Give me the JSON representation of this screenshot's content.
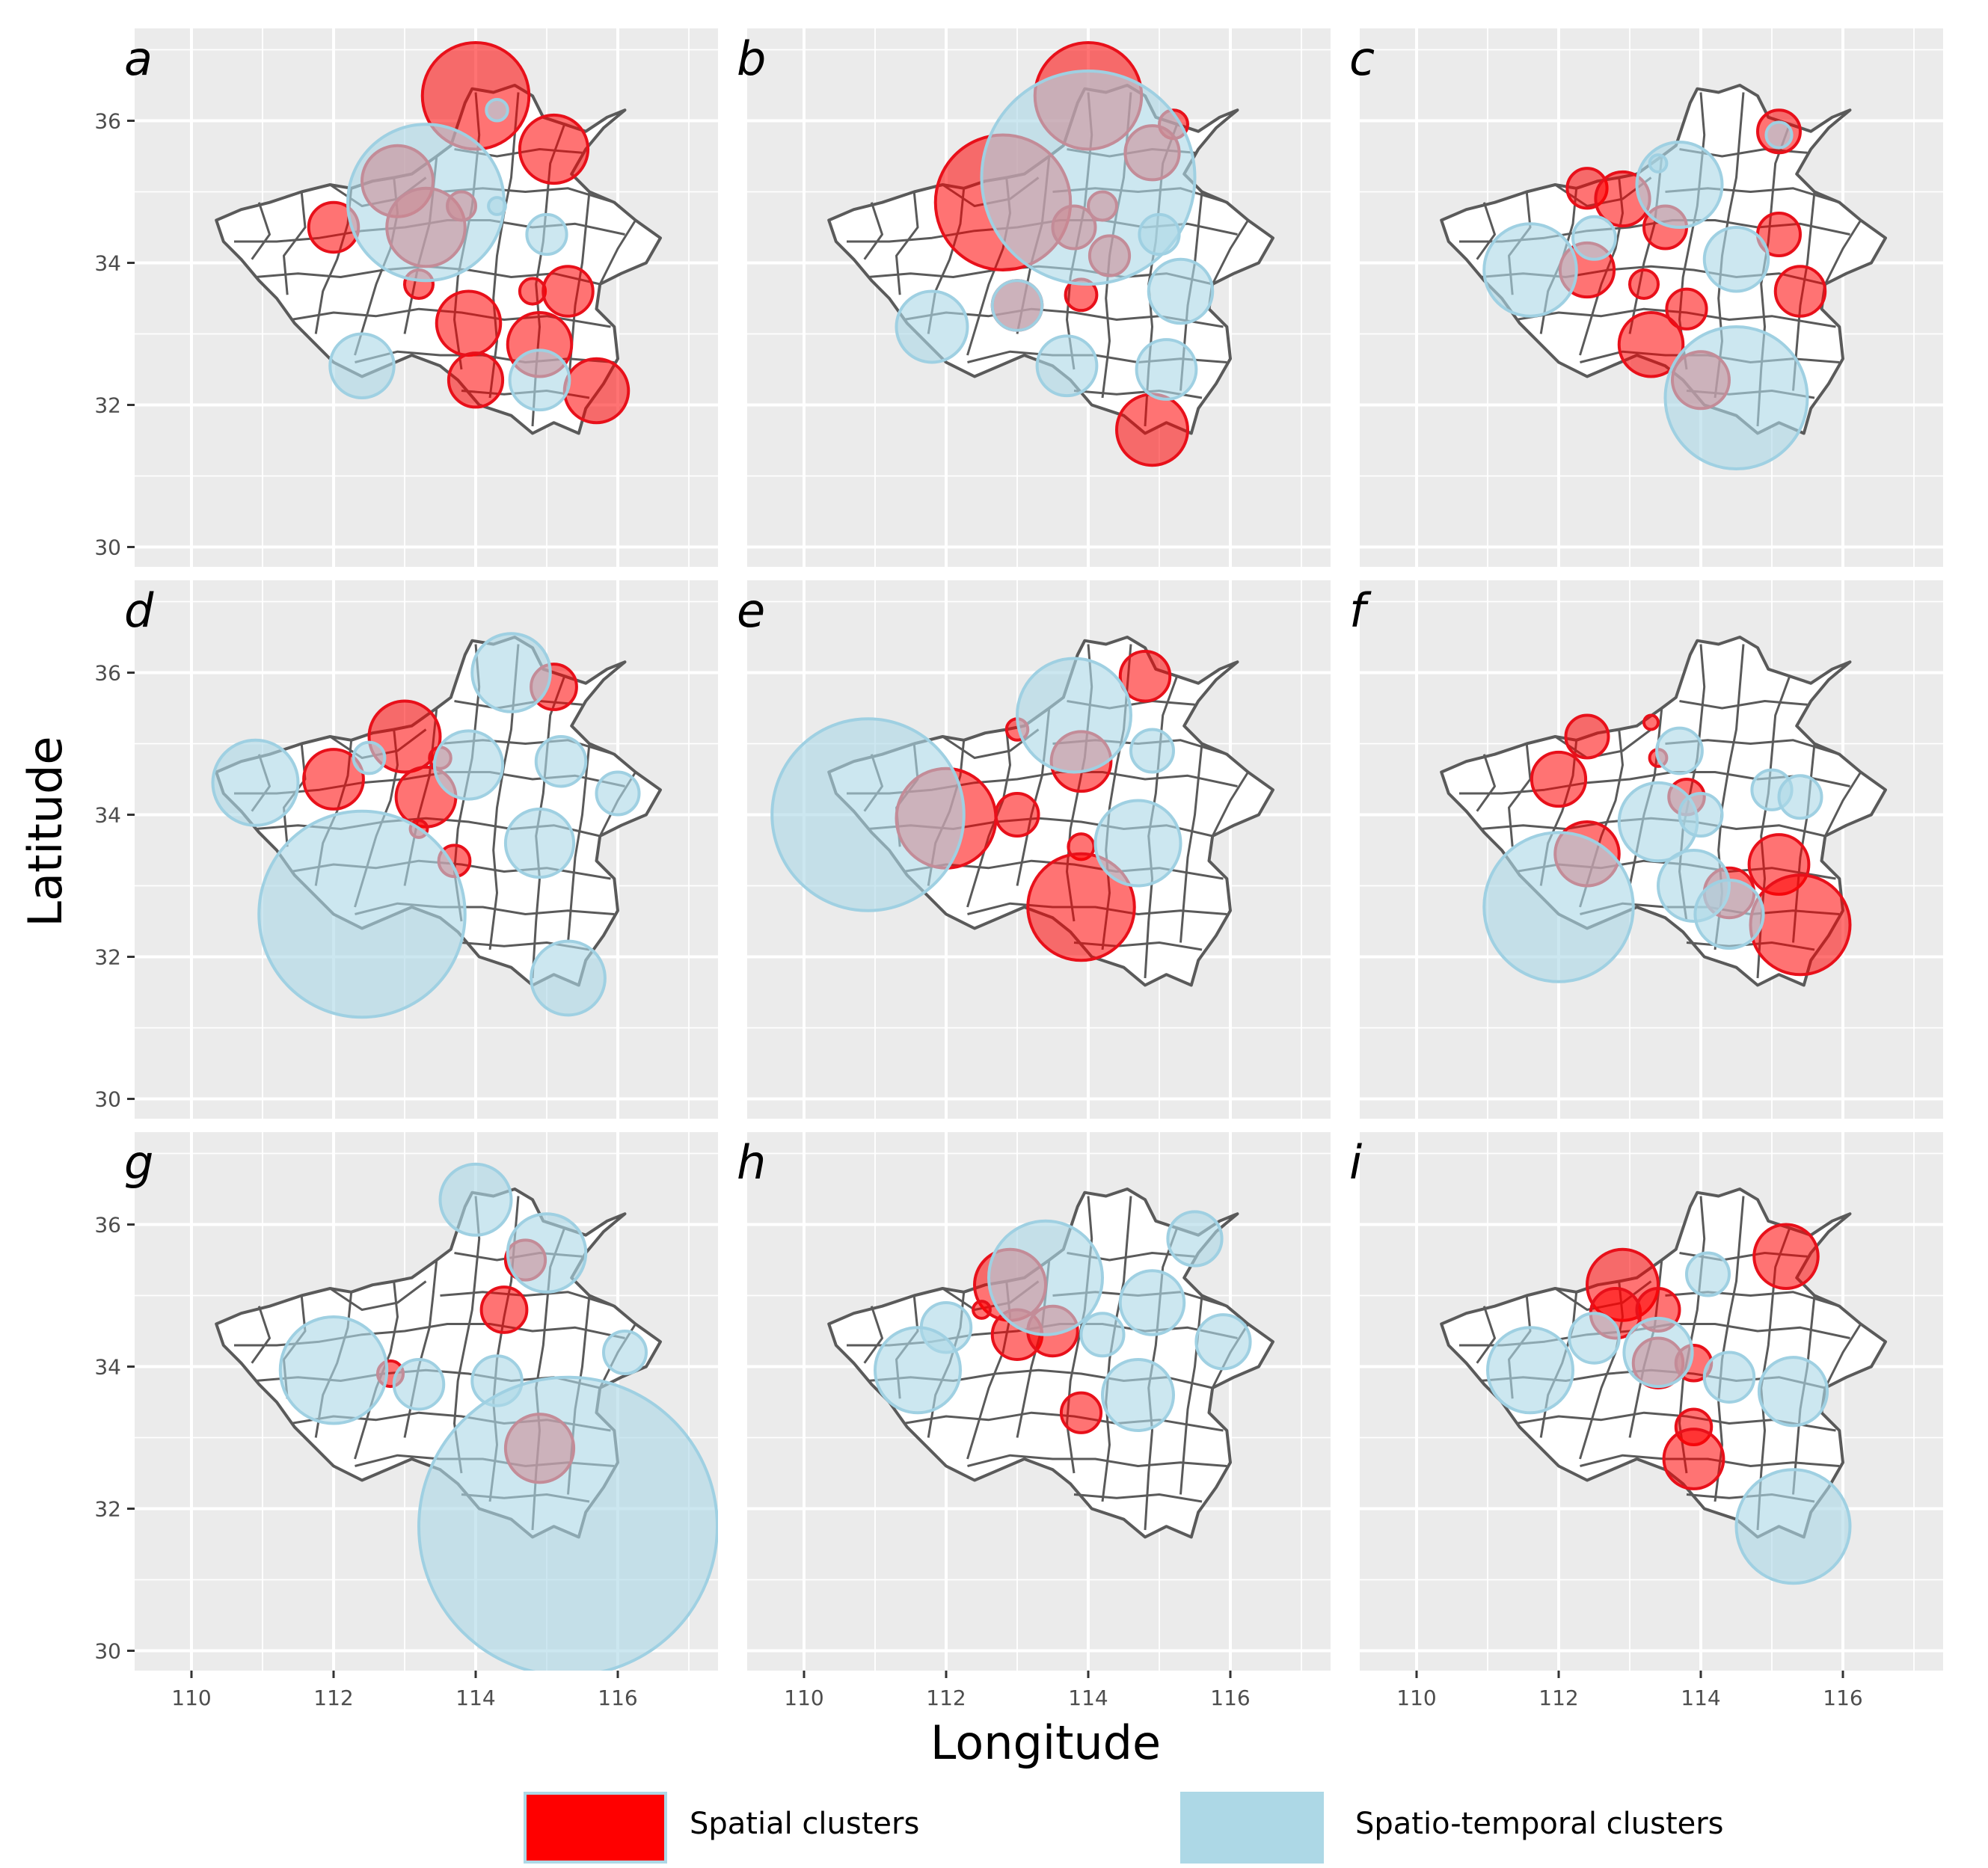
{
  "chart_data": {
    "type": "map",
    "xlabel": "Longitude",
    "ylabel": "Latitude",
    "xlim": [
      109.2,
      117.4
    ],
    "ylim": [
      29.6,
      37.3
    ],
    "x_ticks": [
      110,
      112,
      114,
      116
    ],
    "y_ticks": [
      30,
      32,
      34,
      36
    ],
    "x_tick_labels": [
      "110",
      "112",
      "114",
      "116"
    ],
    "y_tick_labels": [
      "30",
      "32",
      "34",
      "36"
    ],
    "grid": true,
    "legend": {
      "placement": "bottom",
      "entries": [
        {
          "label": "Spatial clusters",
          "color": "#ff0000"
        },
        {
          "label": "Spatio-temporal clusters",
          "color": "#add8e6"
        }
      ]
    },
    "colors": {
      "spatial_fill": "#ff0000",
      "spatial_stroke": "#e8101a",
      "st_fill": "#add8e6",
      "st_stroke": "#9fd0e2",
      "panel_bg": "#ebebeb",
      "grid": "#ffffff",
      "region_fill": "#ffffff",
      "region_stroke": "#5a5a5a"
    },
    "panels": [
      {
        "letter": "a",
        "spatial": [
          [
            114.0,
            36.35,
            0.75
          ],
          [
            115.1,
            35.6,
            0.48
          ],
          [
            112.9,
            35.15,
            0.5
          ],
          [
            113.3,
            34.5,
            0.55
          ],
          [
            112.0,
            34.5,
            0.35
          ],
          [
            113.8,
            34.8,
            0.2
          ],
          [
            113.2,
            33.7,
            0.2
          ],
          [
            114.8,
            33.6,
            0.18
          ],
          [
            115.3,
            33.6,
            0.35
          ],
          [
            113.9,
            33.15,
            0.45
          ],
          [
            114.9,
            32.85,
            0.45
          ],
          [
            114.0,
            32.35,
            0.38
          ],
          [
            115.7,
            32.2,
            0.45
          ]
        ],
        "st": [
          [
            113.3,
            34.85,
            1.1
          ],
          [
            114.3,
            36.15,
            0.15
          ],
          [
            115.0,
            34.4,
            0.28
          ],
          [
            112.4,
            32.55,
            0.45
          ],
          [
            114.9,
            32.35,
            0.42
          ],
          [
            114.3,
            34.8,
            0.12
          ]
        ]
      },
      {
        "letter": "b",
        "spatial": [
          [
            114.0,
            36.35,
            0.75
          ],
          [
            115.2,
            35.95,
            0.2
          ],
          [
            114.9,
            35.55,
            0.38
          ],
          [
            112.8,
            34.85,
            0.95
          ],
          [
            113.8,
            34.5,
            0.3
          ],
          [
            114.2,
            34.8,
            0.2
          ],
          [
            114.3,
            34.1,
            0.28
          ],
          [
            113.9,
            33.55,
            0.22
          ],
          [
            113.0,
            33.4,
            0.35
          ],
          [
            114.9,
            31.65,
            0.5
          ]
        ],
        "st": [
          [
            114.0,
            35.2,
            1.5
          ],
          [
            115.0,
            34.4,
            0.28
          ],
          [
            111.8,
            33.1,
            0.5
          ],
          [
            113.0,
            33.4,
            0.35
          ],
          [
            115.3,
            33.6,
            0.45
          ],
          [
            113.7,
            32.55,
            0.42
          ],
          [
            115.1,
            32.5,
            0.42
          ]
        ]
      },
      {
        "letter": "c",
        "spatial": [
          [
            115.1,
            35.85,
            0.3
          ],
          [
            112.4,
            35.05,
            0.28
          ],
          [
            112.9,
            34.9,
            0.38
          ],
          [
            113.5,
            34.5,
            0.3
          ],
          [
            115.1,
            34.4,
            0.3
          ],
          [
            112.4,
            33.9,
            0.38
          ],
          [
            113.2,
            33.7,
            0.2
          ],
          [
            113.8,
            33.35,
            0.28
          ],
          [
            115.4,
            33.6,
            0.35
          ],
          [
            113.3,
            32.85,
            0.45
          ],
          [
            114.0,
            32.35,
            0.4
          ]
        ],
        "st": [
          [
            113.7,
            35.1,
            0.6
          ],
          [
            115.1,
            35.8,
            0.18
          ],
          [
            112.5,
            34.35,
            0.3
          ],
          [
            111.6,
            33.9,
            0.65
          ],
          [
            114.5,
            34.05,
            0.45
          ],
          [
            114.5,
            32.1,
            1.0
          ],
          [
            113.4,
            35.4,
            0.12
          ]
        ]
      },
      {
        "letter": "d",
        "spatial": [
          [
            113.0,
            35.1,
            0.5
          ],
          [
            115.1,
            35.8,
            0.32
          ],
          [
            112.0,
            34.5,
            0.42
          ],
          [
            113.3,
            34.25,
            0.42
          ],
          [
            113.2,
            33.8,
            0.12
          ],
          [
            113.7,
            33.35,
            0.22
          ],
          [
            113.5,
            34.8,
            0.15
          ]
        ],
        "st": [
          [
            110.9,
            34.45,
            0.6
          ],
          [
            112.5,
            34.8,
            0.22
          ],
          [
            113.9,
            34.7,
            0.48
          ],
          [
            114.5,
            36.0,
            0.55
          ],
          [
            115.2,
            34.75,
            0.35
          ],
          [
            116.0,
            34.3,
            0.3
          ],
          [
            114.9,
            33.6,
            0.48
          ],
          [
            112.4,
            32.6,
            1.45
          ],
          [
            115.3,
            31.7,
            0.52
          ]
        ]
      },
      {
        "letter": "e",
        "spatial": [
          [
            114.8,
            35.95,
            0.35
          ],
          [
            113.9,
            34.75,
            0.42
          ],
          [
            113.0,
            35.2,
            0.15
          ],
          [
            112.0,
            33.95,
            0.7
          ],
          [
            113.0,
            34.0,
            0.3
          ],
          [
            113.9,
            33.55,
            0.18
          ],
          [
            113.9,
            32.7,
            0.75
          ]
        ],
        "st": [
          [
            113.8,
            35.4,
            0.8
          ],
          [
            114.9,
            34.9,
            0.3
          ],
          [
            110.9,
            34.0,
            1.35
          ],
          [
            114.7,
            33.6,
            0.6
          ]
        ]
      },
      {
        "letter": "f",
        "spatial": [
          [
            112.4,
            35.1,
            0.3
          ],
          [
            113.3,
            35.3,
            0.1
          ],
          [
            112.0,
            34.5,
            0.38
          ],
          [
            113.8,
            34.25,
            0.25
          ],
          [
            112.4,
            33.45,
            0.45
          ],
          [
            115.1,
            33.3,
            0.42
          ],
          [
            114.4,
            32.9,
            0.35
          ],
          [
            115.4,
            32.45,
            0.7
          ],
          [
            113.4,
            34.8,
            0.12
          ]
        ],
        "st": [
          [
            113.7,
            34.9,
            0.32
          ],
          [
            113.4,
            33.9,
            0.55
          ],
          [
            114.0,
            34.0,
            0.3
          ],
          [
            115.0,
            34.35,
            0.28
          ],
          [
            115.4,
            34.25,
            0.3
          ],
          [
            113.9,
            33.0,
            0.5
          ],
          [
            114.4,
            32.6,
            0.48
          ],
          [
            112.0,
            32.7,
            1.05
          ]
        ]
      },
      {
        "letter": "g",
        "spatial": [
          [
            114.7,
            35.5,
            0.28
          ],
          [
            114.4,
            34.8,
            0.32
          ],
          [
            112.8,
            33.9,
            0.18
          ],
          [
            114.9,
            32.85,
            0.48
          ]
        ],
        "st": [
          [
            114.0,
            36.35,
            0.5
          ],
          [
            115.0,
            35.6,
            0.55
          ],
          [
            112.0,
            33.95,
            0.75
          ],
          [
            113.2,
            33.75,
            0.35
          ],
          [
            114.3,
            33.8,
            0.35
          ],
          [
            116.1,
            34.2,
            0.3
          ],
          [
            115.3,
            31.75,
            2.1
          ]
        ]
      },
      {
        "letter": "h",
        "spatial": [
          [
            112.9,
            35.15,
            0.5
          ],
          [
            112.5,
            34.8,
            0.12
          ],
          [
            113.0,
            34.45,
            0.35
          ],
          [
            113.5,
            34.5,
            0.35
          ],
          [
            113.9,
            33.35,
            0.28
          ]
        ],
        "st": [
          [
            113.4,
            35.25,
            0.8
          ],
          [
            115.5,
            35.8,
            0.38
          ],
          [
            112.0,
            34.55,
            0.35
          ],
          [
            111.6,
            33.95,
            0.6
          ],
          [
            114.2,
            34.45,
            0.3
          ],
          [
            114.9,
            34.9,
            0.45
          ],
          [
            114.7,
            33.6,
            0.5
          ],
          [
            115.9,
            34.35,
            0.38
          ]
        ]
      },
      {
        "letter": "i",
        "spatial": [
          [
            115.2,
            35.55,
            0.45
          ],
          [
            112.9,
            35.15,
            0.5
          ],
          [
            112.8,
            34.75,
            0.35
          ],
          [
            113.4,
            34.8,
            0.3
          ],
          [
            113.4,
            34.05,
            0.35
          ],
          [
            113.9,
            34.05,
            0.25
          ],
          [
            113.9,
            33.15,
            0.25
          ],
          [
            113.9,
            32.7,
            0.42
          ]
        ],
        "st": [
          [
            114.1,
            35.3,
            0.3
          ],
          [
            112.5,
            34.4,
            0.35
          ],
          [
            113.4,
            34.2,
            0.48
          ],
          [
            111.6,
            33.95,
            0.6
          ],
          [
            114.4,
            33.85,
            0.35
          ],
          [
            115.3,
            33.65,
            0.48
          ],
          [
            115.3,
            31.75,
            0.8
          ]
        ]
      }
    ]
  }
}
